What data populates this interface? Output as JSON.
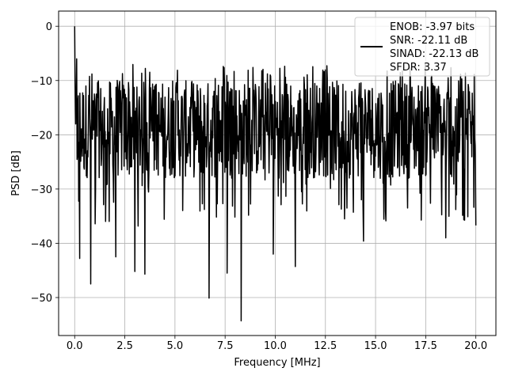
{
  "chart_data": {
    "type": "line",
    "title": "",
    "xlabel": "Frequency [MHz]",
    "ylabel": "PSD [dB]",
    "xlim": [
      -0.8,
      21.0
    ],
    "ylim": [
      -57.0,
      2.8
    ],
    "grid": true,
    "x_ticks": [
      0.0,
      2.5,
      5.0,
      7.5,
      10.0,
      12.5,
      15.0,
      17.5,
      20.0
    ],
    "x_tick_labels": [
      "0.0",
      "2.5",
      "5.0",
      "7.5",
      "10.0",
      "12.5",
      "15.0",
      "17.5",
      "20.0"
    ],
    "y_ticks": [
      0,
      -10,
      -20,
      -30,
      -40,
      -50
    ],
    "y_tick_labels": [
      "0",
      "−10",
      "−20",
      "−30",
      "−40",
      "−50"
    ],
    "legend": {
      "placement": "top-right",
      "entries": [
        "ENOB: -3.97 bits",
        "SNR: -22.11 dB",
        "SINAD: -22.13 dB",
        "SFDR: 3.37"
      ]
    },
    "series": [
      {
        "color": "#000000",
        "x_range": [
          0.0,
          20.0
        ],
        "num_points": 1000,
        "noise_band": {
          "upper": -10,
          "lower": -28,
          "mean": -20
        },
        "notable_points": [
          {
            "x": 0.0,
            "y": 0.0
          },
          {
            "x": 0.05,
            "y": -18.0
          },
          {
            "x": 0.1,
            "y": -6.0
          },
          {
            "x": 0.25,
            "y": -42.8
          },
          {
            "x": 0.8,
            "y": -47.5
          },
          {
            "x": 2.05,
            "y": -42.5
          },
          {
            "x": 3.0,
            "y": -45.2
          },
          {
            "x": 3.5,
            "y": -45.7
          },
          {
            "x": 6.7,
            "y": -50.1
          },
          {
            "x": 7.6,
            "y": -45.5
          },
          {
            "x": 8.3,
            "y": -54.3
          },
          {
            "x": 9.9,
            "y": -42.0
          },
          {
            "x": 11.0,
            "y": -44.3
          },
          {
            "x": 14.4,
            "y": -39.6
          },
          {
            "x": 18.5,
            "y": -39.0
          },
          {
            "x": 20.0,
            "y": -36.7
          }
        ]
      }
    ]
  }
}
